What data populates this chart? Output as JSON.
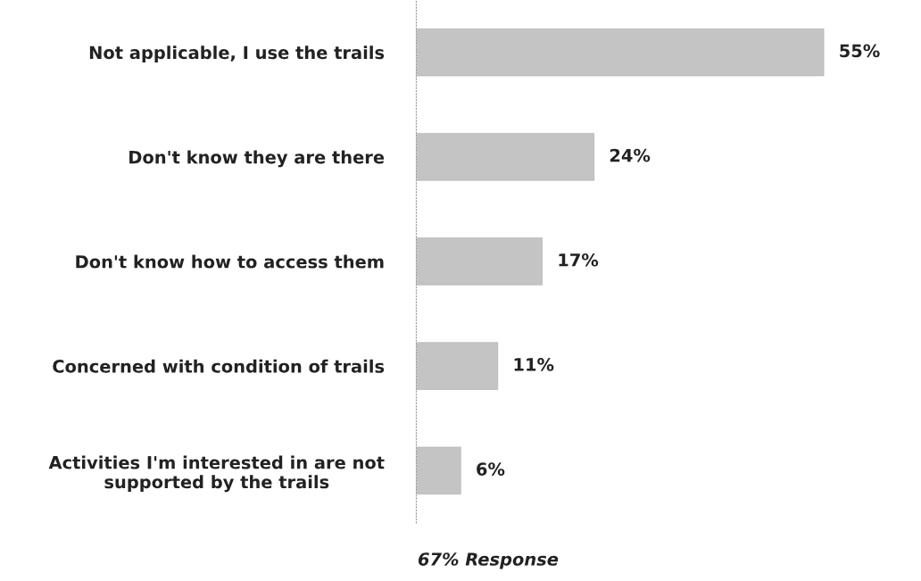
{
  "chart_data": {
    "type": "bar",
    "orientation": "horizontal",
    "categories": [
      "Not applicable, I use the trails",
      "Don't know they are there",
      "Don't know how to access them",
      "Concerned with condition of trails",
      "Activities I'm interested in are not\nsupported by the trails"
    ],
    "values": [
      55,
      24,
      17,
      11,
      6
    ],
    "value_labels": [
      "55%",
      "24%",
      "17%",
      "11%",
      "6%"
    ],
    "color": "#c4c4c4",
    "annotations": [
      "67% Response"
    ],
    "grid": false,
    "legend": false,
    "tick_labels": "y"
  }
}
